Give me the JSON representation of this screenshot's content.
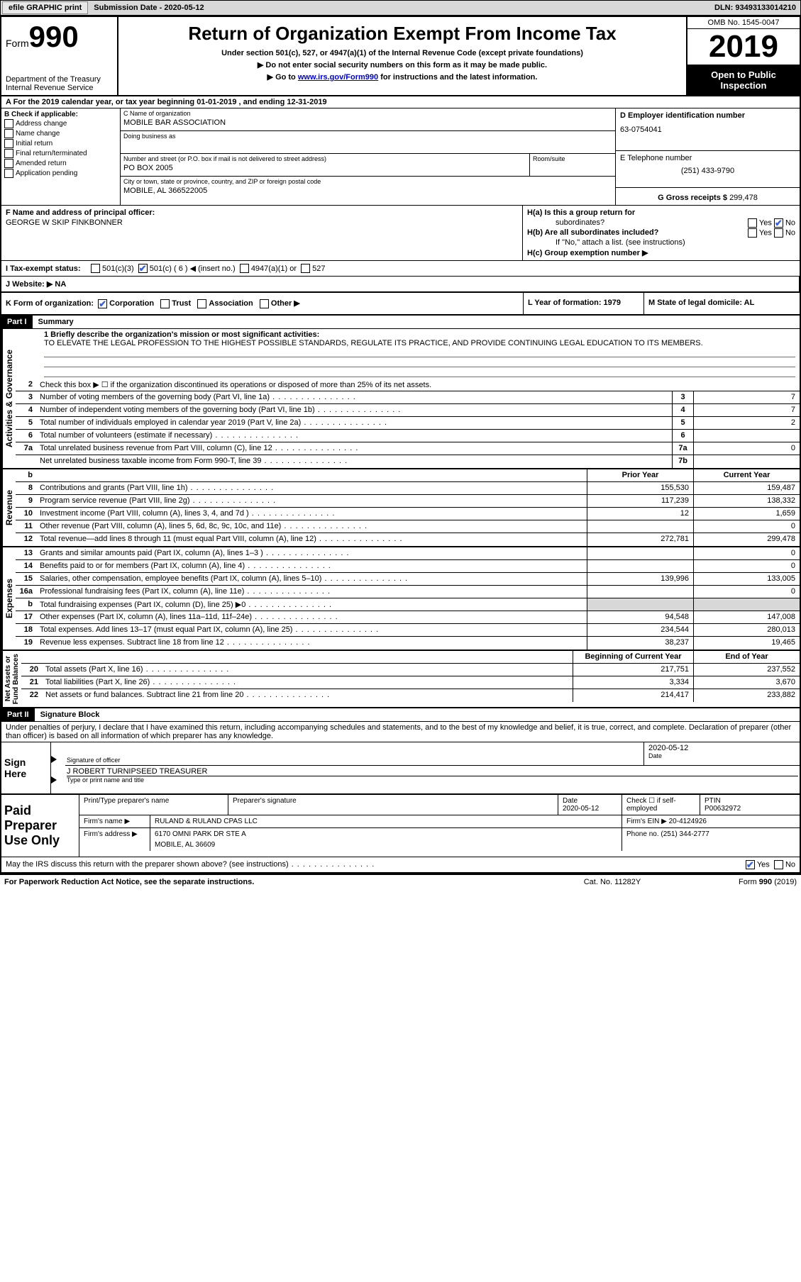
{
  "topbar": {
    "efile": "efile GRAPHIC print",
    "sub_lbl": "Submission Date - ",
    "sub_date": "2020-05-12",
    "dln_lbl": "DLN: ",
    "dln": "93493133014210"
  },
  "header": {
    "form_word": "Form",
    "form_num": "990",
    "dept": "Department of the Treasury\nInternal Revenue Service",
    "title": "Return of Organization Exempt From Income Tax",
    "subtitle": "Under section 501(c), 527, or 4947(a)(1) of the Internal Revenue Code (except private foundations)",
    "note1": "▶ Do not enter social security numbers on this form as it may be made public.",
    "note2_pre": "▶ Go to ",
    "note2_link": "www.irs.gov/Form990",
    "note2_post": " for instructions and the latest information.",
    "omb": "OMB No. 1545-0047",
    "year": "2019",
    "inspect1": "Open to Public",
    "inspect2": "Inspection"
  },
  "rowA": "A For the 2019 calendar year, or tax year beginning 01-01-2019    , and ending 12-31-2019",
  "boxB": {
    "title": "B Check if applicable:",
    "items": [
      "Address change",
      "Name change",
      "Initial return",
      "Final return/terminated",
      "Amended return",
      "Application pending"
    ]
  },
  "boxC": {
    "name_lbl": "C Name of organization",
    "name": "MOBILE BAR ASSOCIATION",
    "dba_lbl": "Doing business as",
    "dba": "",
    "addr_lbl": "Number and street (or P.O. box if mail is not delivered to street address)",
    "room_lbl": "Room/suite",
    "addr": "PO BOX 2005",
    "city_lbl": "City or town, state or province, country, and ZIP or foreign postal code",
    "city": "MOBILE, AL  366522005"
  },
  "boxD": {
    "lbl": "D Employer identification number",
    "val": "63-0754041"
  },
  "boxE": {
    "lbl": "E Telephone number",
    "val": "(251) 433-9790"
  },
  "boxG": {
    "lbl": "G Gross receipts $ ",
    "val": "299,478"
  },
  "boxF": {
    "lbl": "F  Name and address of principal officer:",
    "val": "GEORGE W SKIP FINKBONNER"
  },
  "boxH": {
    "a": "H(a)  Is this a group return for",
    "a2": "subordinates?",
    "b": "H(b)  Are all subordinates included?",
    "b2": "If \"No,\" attach a list. (see instructions)",
    "c": "H(c)  Group exemption number ▶",
    "yes": "Yes",
    "no": "No"
  },
  "taxI": {
    "lbl": "I    Tax-exempt status:",
    "opts": [
      "501(c)(3)",
      "501(c) ( 6 ) ◀ (insert no.)",
      "4947(a)(1) or",
      "527"
    ]
  },
  "rowJ": {
    "lbl": "J   Website: ▶",
    "val": "NA"
  },
  "rowK": {
    "lbl": "K Form of organization:",
    "opts": [
      "Corporation",
      "Trust",
      "Association",
      "Other ▶"
    ],
    "L": "L Year of formation: 1979",
    "M": "M State of legal domicile: AL"
  },
  "part1": {
    "hdr": "Part I",
    "title": "Summary",
    "mission_lbl": "1   Briefly describe the organization's mission or most significant activities:",
    "mission": "TO ELEVATE THE LEGAL PROFESSION TO THE HIGHEST POSSIBLE STANDARDS, REGULATE ITS PRACTICE, AND PROVIDE CONTINUING LEGAL EDUCATION TO ITS MEMBERS."
  },
  "side": {
    "gov": "Activities & Governance",
    "rev": "Revenue",
    "exp": "Expenses",
    "na": "Net Assets or\nFund Balances"
  },
  "gov_lines": [
    {
      "n": "2",
      "d": "Check this box ▶ ☐  if the organization discontinued its operations or disposed of more than 25% of its net assets."
    },
    {
      "n": "3",
      "d": "Number of voting members of the governing body (Part VI, line 1a)",
      "box": "3",
      "v": "7"
    },
    {
      "n": "4",
      "d": "Number of independent voting members of the governing body (Part VI, line 1b)",
      "box": "4",
      "v": "7"
    },
    {
      "n": "5",
      "d": "Total number of individuals employed in calendar year 2019 (Part V, line 2a)",
      "box": "5",
      "v": "2"
    },
    {
      "n": "6",
      "d": "Total number of volunteers (estimate if necessary)",
      "box": "6",
      "v": ""
    },
    {
      "n": "7a",
      "d": "Total unrelated business revenue from Part VIII, column (C), line 12",
      "box": "7a",
      "v": "0"
    },
    {
      "n": "",
      "d": "Net unrelated business taxable income from Form 990-T, line 39",
      "box": "7b",
      "v": ""
    }
  ],
  "cols": {
    "b": "b",
    "py": "Prior Year",
    "cy": "Current Year"
  },
  "rev_lines": [
    {
      "n": "8",
      "d": "Contributions and grants (Part VIII, line 1h)",
      "py": "155,530",
      "cy": "159,487"
    },
    {
      "n": "9",
      "d": "Program service revenue (Part VIII, line 2g)",
      "py": "117,239",
      "cy": "138,332"
    },
    {
      "n": "10",
      "d": "Investment income (Part VIII, column (A), lines 3, 4, and 7d )",
      "py": "12",
      "cy": "1,659"
    },
    {
      "n": "11",
      "d": "Other revenue (Part VIII, column (A), lines 5, 6d, 8c, 9c, 10c, and 11e)",
      "py": "",
      "cy": "0"
    },
    {
      "n": "12",
      "d": "Total revenue—add lines 8 through 11 (must equal Part VIII, column (A), line 12)",
      "py": "272,781",
      "cy": "299,478"
    }
  ],
  "exp_lines": [
    {
      "n": "13",
      "d": "Grants and similar amounts paid (Part IX, column (A), lines 1–3 )",
      "py": "",
      "cy": "0"
    },
    {
      "n": "14",
      "d": "Benefits paid to or for members (Part IX, column (A), line 4)",
      "py": "",
      "cy": "0"
    },
    {
      "n": "15",
      "d": "Salaries, other compensation, employee benefits (Part IX, column (A), lines 5–10)",
      "py": "139,996",
      "cy": "133,005"
    },
    {
      "n": "16a",
      "d": "Professional fundraising fees (Part IX, column (A), line 11e)",
      "py": "",
      "cy": "0"
    },
    {
      "n": "b",
      "d": "Total fundraising expenses (Part IX, column (D), line 25) ▶0",
      "py": "shade",
      "cy": "shade"
    },
    {
      "n": "17",
      "d": "Other expenses (Part IX, column (A), lines 11a–11d, 11f–24e)",
      "py": "94,548",
      "cy": "147,008"
    },
    {
      "n": "18",
      "d": "Total expenses. Add lines 13–17 (must equal Part IX, column (A), line 25)",
      "py": "234,544",
      "cy": "280,013"
    },
    {
      "n": "19",
      "d": "Revenue less expenses. Subtract line 18 from line 12",
      "py": "38,237",
      "cy": "19,465"
    }
  ],
  "na_hdr": {
    "py": "Beginning of Current Year",
    "cy": "End of Year"
  },
  "na_lines": [
    {
      "n": "20",
      "d": "Total assets (Part X, line 16)",
      "py": "217,751",
      "cy": "237,552"
    },
    {
      "n": "21",
      "d": "Total liabilities (Part X, line 26)",
      "py": "3,334",
      "cy": "3,670"
    },
    {
      "n": "22",
      "d": "Net assets or fund balances. Subtract line 21 from line 20",
      "py": "214,417",
      "cy": "233,882"
    }
  ],
  "part2": {
    "hdr": "Part II",
    "title": "Signature Block"
  },
  "penalties": "Under penalties of perjury, I declare that I have examined this return, including accompanying schedules and statements, and to the best of my knowledge and belief, it is true, correct, and complete. Declaration of preparer (other than officer) is based on all information of which preparer has any knowledge.",
  "sign": {
    "here": "Sign Here",
    "sig_lbl": "Signature of officer",
    "date_lbl": "Date",
    "date": "2020-05-12",
    "name": "J ROBERT TURNIPSEED  TREASURER",
    "name_lbl": "Type or print name and title"
  },
  "prep": {
    "side": "Paid Preparer Use Only",
    "h": [
      "Print/Type preparer's name",
      "Preparer's signature",
      "Date",
      "Check ☐  if self-employed",
      "PTIN"
    ],
    "date": "2020-05-12",
    "ptin": "P00632972",
    "firm_lbl": "Firm's name    ▶",
    "firm": "RULAND & RULAND CPAS LLC",
    "ein_lbl": "Firm's EIN ▶",
    "ein": "20-4124926",
    "addr_lbl": "Firm's address ▶",
    "addr1": "6170 OMNI PARK DR STE A",
    "addr2": "MOBILE, AL  36609",
    "phone_lbl": "Phone no.",
    "phone": "(251) 344-2777"
  },
  "discuss": {
    "q": "May the IRS discuss this return with the preparer shown above? (see instructions)",
    "yes": "Yes",
    "no": "No"
  },
  "footer": {
    "pra": "For Paperwork Reduction Act Notice, see the separate instructions.",
    "cat": "Cat. No. 11282Y",
    "form": "Form 990 (2019)"
  },
  "colors": {
    "link": "#0000cc",
    "check": "#3a5fd8",
    "rule": "#4a6fd8"
  }
}
